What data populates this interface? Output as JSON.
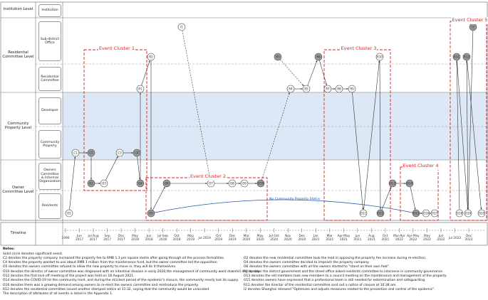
{
  "levels": [
    "Institution Level",
    "Residential Committee Level",
    "Community Property Level",
    "Owner Committee Level",
    "Timeline"
  ],
  "sublevels": [
    "Institution",
    "Sub-district Office",
    "Residential Committee",
    "Developer",
    "Community Property",
    "Owners Committee & Informal Organization",
    "Residents"
  ],
  "nodes": [
    {
      "label": "I1",
      "solid": false
    },
    {
      "label": "I2",
      "solid": true
    },
    {
      "label": "R1",
      "solid": false
    },
    {
      "label": "R2",
      "solid": false
    },
    {
      "label": "R3",
      "solid": true
    },
    {
      "label": "R4",
      "solid": false
    },
    {
      "label": "R5",
      "solid": false
    },
    {
      "label": "R6",
      "solid": true
    },
    {
      "label": "R7",
      "solid": false
    },
    {
      "label": "R8",
      "solid": false
    },
    {
      "label": "R9",
      "solid": false
    },
    {
      "label": "R10",
      "solid": false
    },
    {
      "label": "R11",
      "solid": true
    },
    {
      "label": "R12",
      "solid": true
    },
    {
      "label": "C1",
      "solid": false
    },
    {
      "label": "C2",
      "solid": true
    },
    {
      "label": "C3",
      "solid": false
    },
    {
      "label": "C4",
      "solid": true
    },
    {
      "label": "O1",
      "solid": false
    },
    {
      "label": "O2",
      "solid": true
    },
    {
      "label": "O3",
      "solid": false
    },
    {
      "label": "O4",
      "solid": true
    },
    {
      "label": "O5",
      "solid": true
    },
    {
      "label": "O6",
      "solid": true
    },
    {
      "label": "O7",
      "solid": false
    },
    {
      "label": "O8",
      "solid": false
    },
    {
      "label": "O9",
      "solid": false
    },
    {
      "label": "O10",
      "solid": true
    },
    {
      "label": "O11",
      "solid": false
    },
    {
      "label": "O12",
      "solid": true
    },
    {
      "label": "O13",
      "solid": true
    },
    {
      "label": "O14",
      "solid": true
    },
    {
      "label": "O15",
      "solid": true
    },
    {
      "label": "O16",
      "solid": false
    },
    {
      "label": "O17",
      "solid": false
    },
    {
      "label": "O18",
      "solid": false
    },
    {
      "label": "O19",
      "solid": false
    },
    {
      "label": "O20",
      "solid": false
    }
  ],
  "clusters": [
    "Event Cluster 1",
    "Event Cluster 2",
    "Event Cluster 3",
    "Event Cluster 4",
    "Event Cluster 5"
  ],
  "status_label": "No Community Property Status",
  "timeline": [
    "1990",
    "Jun 2017",
    "Jul-Aug 2017",
    "Sep 2017",
    "Dec 2017",
    "May 2018",
    "Jun 2018",
    "Jul-Sep 2018",
    "Oct 2018",
    "May 2019",
    "Jul 2019",
    "Oct 2019",
    "Dec 2019",
    "Mar 2020",
    "May 2020",
    "Jul-Oct 2020",
    "Nov 2020",
    "Dec 2020",
    "Jan 2021",
    "Mar 2021",
    "Apr-May 2021",
    "Jun 2021",
    "Aug 2021",
    "Oct 2021",
    "Mar-Apr 2022",
    "Apr-May 2022",
    "May 2022",
    "Jun 2022",
    "Jul 2022",
    "Dec 2022"
  ],
  "notes": {
    "title": "Notes:",
    "left": [
      "Solid circle denotes significant event.",
      "C2 denotes the property company increased the property fee to RMB 1.3 per square metre after going through all the process formalities.",
      "C4 denotes the property wanted to use about RMB 1 million from the maintenance fund, but the owner committee led the opposition.",
      "O5 denotes the owners committee refused to allow the new property to move in, they will do it themselves.",
      "O10 denotes the director of owner committee was diagnosed with an intestinal disease in early 2020,the management of community went downhill day by day.",
      "O12 denotes the first kick-off meeting of the project was held on 18 August 2021.",
      "O14 denotes the COVID-19 hit the community hard, and during the strictest period of the epidemic's closure, the community nearly lost its supply.",
      "O16 denotes there was a growing demand among owners to re-elect the owners committee and reintroduce the property.",
      "R12 denotes the residential committee issued another stamped notice at 11:32, saying that the community would be unlocated.",
      "The description of attributes of all events is listed in the Appendix 1."
    ],
    "right": [
      "O2 denotes the new residential committee took the lead in opposing the property fee increase during re-election.",
      "O4 denotes the owners committee decided to impeach the property company.",
      "O6 denotes the owners committee with all the owners started to \"stand on their own feet\".",
      "R5 denotes the district government and the street office asked residents committee to intervene in community governance.",
      "O13 denotes the old members took new members to a council meeting on the maintenance and management of the property.",
      "O15 denotes owners have expressed that a professional team is still needed for extermination and safeguarding.",
      "R11 denotes the director of the residential committee sent out a notice of closure at 10:38 am.",
      "I2 denotes Shanghai released \"Optimizes and adjusts measures related to the prevention and control of the epidemic\"."
    ]
  }
}
